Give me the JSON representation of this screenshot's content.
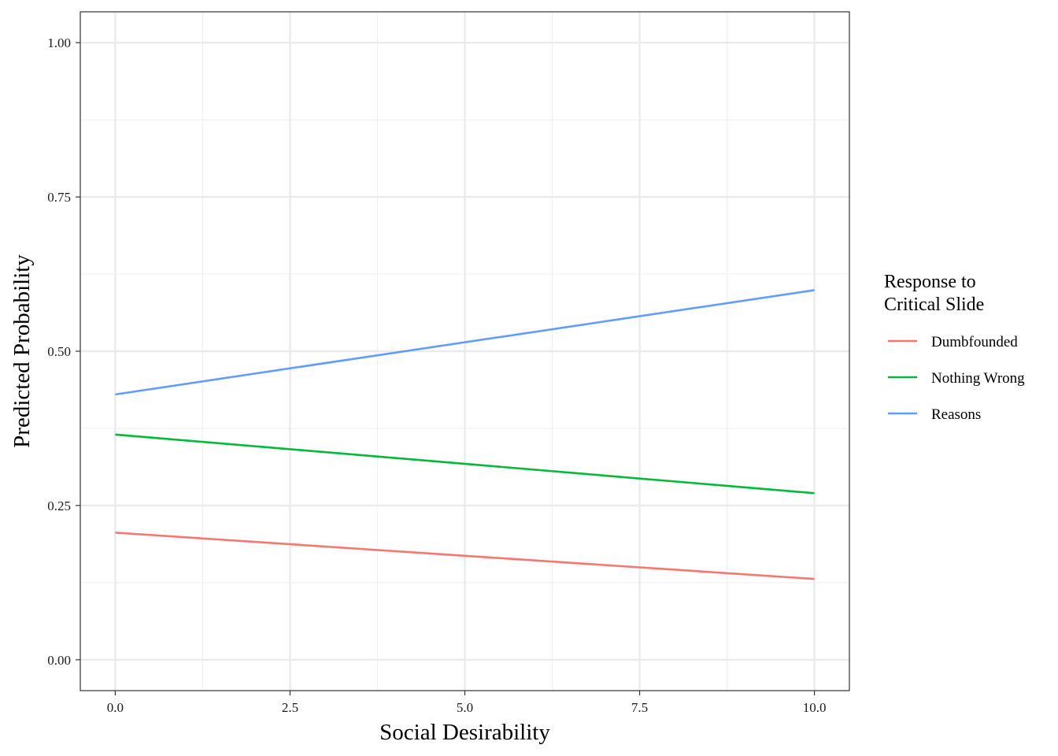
{
  "chart_data": {
    "type": "line",
    "xlabel": "Social Desirability",
    "ylabel": "Predicted Probability",
    "xlim": [
      -0.5,
      10.5
    ],
    "ylim": [
      -0.05,
      1.05
    ],
    "x_ticks": [
      0.0,
      2.5,
      5.0,
      7.5,
      10.0
    ],
    "x_tick_labels": [
      "0.0",
      "2.5",
      "5.0",
      "7.5",
      "10.0"
    ],
    "y_ticks": [
      0.0,
      0.25,
      0.5,
      0.75,
      1.0
    ],
    "y_tick_labels": [
      "0.00",
      "0.25",
      "0.50",
      "0.75",
      "1.00"
    ],
    "grid": true,
    "legend": {
      "title_lines": [
        "Response to",
        "Critical Slide"
      ],
      "placement": "right"
    },
    "series": [
      {
        "name": "Dumbfounded",
        "color": "#F8766D",
        "x": [
          0,
          10
        ],
        "y": [
          0.206,
          0.131
        ]
      },
      {
        "name": "Nothing Wrong",
        "color": "#00BA38",
        "x": [
          0,
          10
        ],
        "y": [
          0.365,
          0.27
        ]
      },
      {
        "name": "Reasons",
        "color": "#619CFF",
        "x": [
          0,
          10
        ],
        "y": [
          0.43,
          0.599
        ]
      }
    ]
  }
}
